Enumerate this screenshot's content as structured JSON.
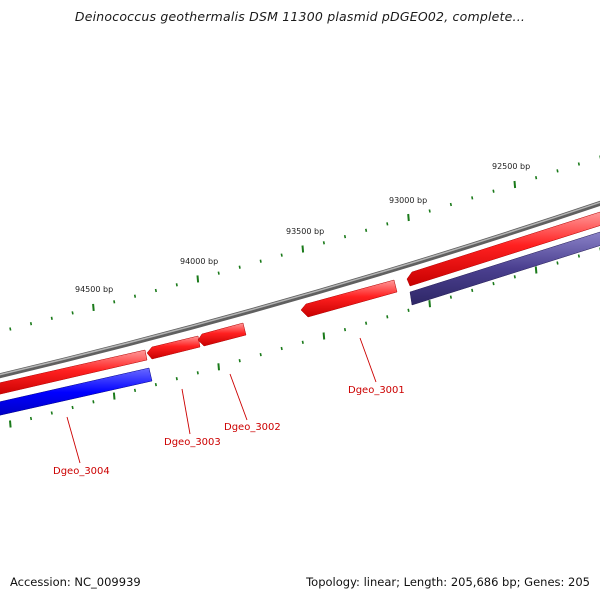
{
  "title": "Deinococcus geothermalis DSM 11300 plasmid pDGEO02, complete...",
  "footer": {
    "accession": "Accession: NC_009939",
    "summary": "Topology: linear; Length: 205,686 bp; Genes: 205"
  },
  "scale_labels": {
    "bp_92500": "92500 bp",
    "bp_93000": "93000 bp",
    "bp_93500": "93500 bp",
    "bp_94000": "94000 bp",
    "bp_94500": "94500 bp"
  },
  "genes": {
    "dgeo_3001": "Dgeo_3001",
    "dgeo_3002": "Dgeo_3002",
    "dgeo_3003": "Dgeo_3003",
    "dgeo_3004": "Dgeo_3004"
  },
  "colors": {
    "backbone": "#808080",
    "forward_gene": "#ff1a1a",
    "reverse_gene_selected": "#0000ff",
    "reverse_gene": "#4a3f8f",
    "tick": "#1a7a1a",
    "gene_label": "#cc0000"
  }
}
